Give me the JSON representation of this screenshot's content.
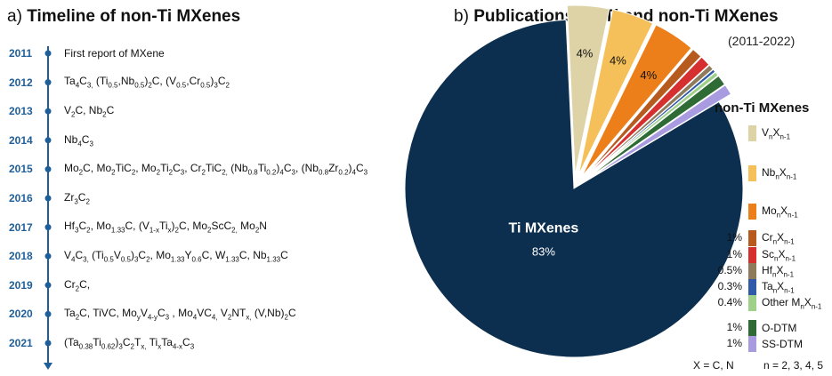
{
  "panel_a": {
    "title_prefix": "a) ",
    "title_bold": "Timeline of non-Ti MXenes",
    "axis_color": "#1f5f99",
    "entries": [
      {
        "year": "2011",
        "html": "First report of MXene"
      },
      {
        "year": "2012",
        "html": "Ta<sub>4</sub>C<sub>3,</sub> (Ti<sub>0.5</sub>,Nb<sub>0.5</sub>)<sub>2</sub>C, (V<sub>0.5</sub>,Cr<sub>0.5</sub>)<sub>3</sub>C<sub>2</sub>"
      },
      {
        "year": "2013",
        "html": "V<sub>2</sub>C, Nb<sub>2</sub>C"
      },
      {
        "year": "2014",
        "html": "Nb<sub>4</sub>C<sub>3</sub>"
      },
      {
        "year": "2015",
        "html": "Mo<sub>2</sub>C, Mo<sub>2</sub>TiC<sub>2</sub>, Mo<sub>2</sub>Ti<sub>2</sub>C<sub>3</sub>, Cr<sub>2</sub>TiC<sub>2,</sub> (Nb<sub>0.8</sub>Ti<sub>0.2</sub>)<sub>4</sub>C<sub>3</sub>, (Nb<sub>0.8</sub>Zr<sub>0.2</sub>)<sub>4</sub>C<sub>3</sub>"
      },
      {
        "year": "2016",
        "html": "Zr<sub>3</sub>C<sub>2</sub>"
      },
      {
        "year": "2017",
        "html": "Hf<sub>3</sub>C<sub>2</sub>, Mo<sub>1.33</sub>C, (V<sub>1-x</sub>Ti<sub>x</sub>)<sub>2</sub>C, Mo<sub>2</sub>ScC<sub>2,</sub> Mo<sub>2</sub>N"
      },
      {
        "year": "2018",
        "html": "V<sub>4</sub>C<sub>3,</sub> (Ti<sub>0.5</sub>V<sub>0.5</sub>)<sub>3</sub>C<sub>2</sub>, Mo<sub>1.33</sub>Y<sub>0.6</sub>C, W<sub>1.33</sub>C, Nb<sub>1.33</sub>C"
      },
      {
        "year": "2019",
        "html": "Cr<sub>2</sub>C,"
      },
      {
        "year": "2020",
        "html": "Ta<sub>2</sub>C, TiVC, Mo<sub>y</sub>V<sub>4-y</sub>C<sub>3</sub> , Mo<sub>4</sub>VC<sub>4,</sub> V<sub>2</sub>NT<sub>x,</sub> (V,Nb)<sub>2</sub>C"
      },
      {
        "year": "2021",
        "html": "(Ta<sub>0.38</sub>Ti<sub>0.62</sub>)<sub>3</sub>C<sub>2</sub>T<sub>x,</sub> Ti<sub>x</sub>Ta<sub>4-x</sub>C<sub>3</sub>"
      }
    ]
  },
  "panel_b": {
    "title_prefix": "b) ",
    "title_bold": "Publications on Ti and non-Ti MXenes",
    "subtitle": "(2011-2022)",
    "legend_title": "non-Ti MXenes",
    "footnote_left": "X = C, N",
    "footnote_right": "n = 2, 3, 4, 5"
  },
  "chart_data": {
    "type": "pie",
    "title": "Publications on Ti and non-Ti MXenes",
    "subtitle": "(2011-2022)",
    "unit": "%",
    "slices": [
      {
        "label": "Ti MXenes",
        "value": 83,
        "display": "83%",
        "color": "#0d2f4f",
        "exploded": false
      },
      {
        "label": "VnXn-1",
        "label_html": "V<sub>n</sub>X<sub>n-1</sub>",
        "value": 4,
        "display": "4%",
        "color": "#ddd3a6",
        "exploded": true
      },
      {
        "label": "NbnXn-1",
        "label_html": "Nb<sub>n</sub>X<sub>n-1</sub>",
        "value": 4,
        "display": "4%",
        "color": "#f5c05a",
        "exploded": true
      },
      {
        "label": "MonXn-1",
        "label_html": "Mo<sub>n</sub>X<sub>n-1</sub>",
        "value": 4,
        "display": "4%",
        "color": "#ec7f1a",
        "exploded": true
      },
      {
        "label": "CrnXn-1",
        "label_html": "Cr<sub>n</sub>X<sub>n-1</sub>",
        "value": 1,
        "display": "1%",
        "color": "#b65a1e",
        "exploded": true
      },
      {
        "label": "ScnXn-1",
        "label_html": "Sc<sub>n</sub>X<sub>n-1</sub>",
        "value": 1,
        "display": "1%",
        "color": "#d62f2f",
        "exploded": true
      },
      {
        "label": "HfnXn-1",
        "label_html": "Hf<sub>n</sub>X<sub>n-1</sub>",
        "value": 0.5,
        "display": "0.5%",
        "color": "#8f7b5b",
        "exploded": true
      },
      {
        "label": "TanXn-1",
        "label_html": "Ta<sub>n</sub>X<sub>n-1</sub>",
        "value": 0.3,
        "display": "0.3%",
        "color": "#2e5aa8",
        "exploded": true
      },
      {
        "label": "Other MnXn-1",
        "label_html": "Other M<sub>n</sub>X<sub>n-1</sub>",
        "value": 0.4,
        "display": "0.4%",
        "color": "#9fd08a",
        "exploded": true
      },
      {
        "label": "O-DTM",
        "label_html": "O-DTM",
        "value": 1,
        "display": "1%",
        "color": "#2f6b34",
        "exploded": true
      },
      {
        "label": "SS-DTM",
        "label_html": "SS-DTM",
        "value": 1,
        "display": "1%",
        "color": "#a99be0",
        "exploded": true
      }
    ]
  }
}
